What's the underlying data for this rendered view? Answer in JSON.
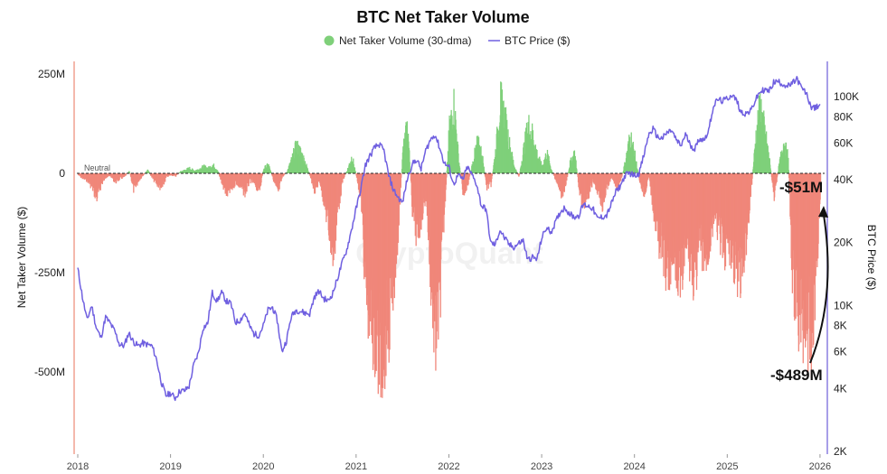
{
  "chart_data": {
    "type": "bar+line",
    "title": "BTC Net Taker Volume",
    "legend": [
      {
        "name": "Net Taker Volume (30-dma)",
        "color": "#7fd07a",
        "marker": "circle"
      },
      {
        "name": "BTC Price ($)",
        "color": "#6f5fe0",
        "marker": "line"
      }
    ],
    "legend_position": "top-center",
    "y_left": {
      "label": "Net Taker Volume ($)",
      "ticks": [
        "250M",
        "0",
        "-250M",
        "-500M"
      ],
      "tick_values": [
        250,
        0,
        -250,
        -500
      ],
      "range": [
        -700,
        270
      ],
      "unit": "M"
    },
    "y_right": {
      "label": "BTC Price ($)",
      "scale": "log",
      "ticks": [
        "100K",
        "80K",
        "60K",
        "40K",
        "20K",
        "10K",
        "8K",
        "6K",
        "4K",
        "2K"
      ],
      "tick_values": [
        100000,
        80000,
        60000,
        40000,
        20000,
        10000,
        8000,
        6000,
        4000,
        2000
      ],
      "range": [
        2000,
        160000
      ]
    },
    "x": {
      "ticks": [
        "2018",
        "2019",
        "2020",
        "2021",
        "2022",
        "2023",
        "2024",
        "2025",
        "2026"
      ],
      "range": [
        2018.0,
        2026.03
      ]
    },
    "neutral_label": "Neutral",
    "watermark": "CryptoQuant",
    "annotations": [
      {
        "text": "-$51M",
        "date": 2026.0,
        "value": -51
      },
      {
        "text": "-$489M",
        "date": 2025.9,
        "value": -489
      }
    ],
    "colors": {
      "positive": "#7fd07a",
      "negative": "#f0877a",
      "price": "#6f5fe0",
      "left_axis": "#f0a090",
      "right_axis": "#8a7fe0"
    },
    "net_taker_volume": [
      [
        2018.0,
        -5
      ],
      [
        2018.05,
        -15
      ],
      [
        2018.1,
        -20
      ],
      [
        2018.15,
        -40
      ],
      [
        2018.2,
        -70
      ],
      [
        2018.25,
        -30
      ],
      [
        2018.3,
        -10
      ],
      [
        2018.35,
        -8
      ],
      [
        2018.4,
        -25
      ],
      [
        2018.45,
        -15
      ],
      [
        2018.5,
        -10
      ],
      [
        2018.55,
        8
      ],
      [
        2018.6,
        -50
      ],
      [
        2018.65,
        -20
      ],
      [
        2018.7,
        -5
      ],
      [
        2018.75,
        10
      ],
      [
        2018.8,
        -15
      ],
      [
        2018.85,
        -30
      ],
      [
        2018.9,
        -45
      ],
      [
        2018.95,
        -10
      ],
      [
        2019.0,
        -5
      ],
      [
        2019.05,
        -8
      ],
      [
        2019.1,
        5
      ],
      [
        2019.15,
        10
      ],
      [
        2019.2,
        15
      ],
      [
        2019.25,
        8
      ],
      [
        2019.3,
        12
      ],
      [
        2019.35,
        20
      ],
      [
        2019.4,
        15
      ],
      [
        2019.45,
        25
      ],
      [
        2019.5,
        10
      ],
      [
        2019.55,
        -30
      ],
      [
        2019.6,
        -60
      ],
      [
        2019.65,
        -45
      ],
      [
        2019.7,
        -25
      ],
      [
        2019.75,
        -40
      ],
      [
        2019.8,
        -55
      ],
      [
        2019.85,
        -20
      ],
      [
        2019.9,
        -30
      ],
      [
        2019.95,
        -50
      ],
      [
        2020.0,
        15
      ],
      [
        2020.05,
        25
      ],
      [
        2020.1,
        -15
      ],
      [
        2020.15,
        -60
      ],
      [
        2020.2,
        -10
      ],
      [
        2020.25,
        5
      ],
      [
        2020.3,
        40
      ],
      [
        2020.35,
        80
      ],
      [
        2020.4,
        60
      ],
      [
        2020.45,
        30
      ],
      [
        2020.5,
        -10
      ],
      [
        2020.55,
        -50
      ],
      [
        2020.6,
        -20
      ],
      [
        2020.65,
        -80
      ],
      [
        2020.7,
        -160
      ],
      [
        2020.75,
        -230
      ],
      [
        2020.8,
        -100
      ],
      [
        2020.85,
        -20
      ],
      [
        2020.9,
        10
      ],
      [
        2020.95,
        50
      ],
      [
        2021.0,
        -10
      ],
      [
        2021.05,
        -80
      ],
      [
        2021.1,
        -340
      ],
      [
        2021.15,
        -410
      ],
      [
        2021.2,
        -470
      ],
      [
        2021.25,
        -540
      ],
      [
        2021.3,
        -480
      ],
      [
        2021.35,
        -420
      ],
      [
        2021.4,
        -300
      ],
      [
        2021.45,
        -150
      ],
      [
        2021.5,
        70
      ],
      [
        2021.55,
        140
      ],
      [
        2021.6,
        -100
      ],
      [
        2021.65,
        -180
      ],
      [
        2021.7,
        -120
      ],
      [
        2021.75,
        -60
      ],
      [
        2021.8,
        -300
      ],
      [
        2021.85,
        -480
      ],
      [
        2021.9,
        -340
      ],
      [
        2021.95,
        -90
      ],
      [
        2022.0,
        130
      ],
      [
        2022.05,
        200
      ],
      [
        2022.1,
        40
      ],
      [
        2022.15,
        -60
      ],
      [
        2022.2,
        -30
      ],
      [
        2022.25,
        30
      ],
      [
        2022.3,
        90
      ],
      [
        2022.35,
        60
      ],
      [
        2022.4,
        -40
      ],
      [
        2022.45,
        -30
      ],
      [
        2022.5,
        70
      ],
      [
        2022.55,
        210
      ],
      [
        2022.6,
        160
      ],
      [
        2022.65,
        80
      ],
      [
        2022.7,
        20
      ],
      [
        2022.75,
        -10
      ],
      [
        2022.8,
        70
      ],
      [
        2022.85,
        140
      ],
      [
        2022.9,
        110
      ],
      [
        2022.95,
        50
      ],
      [
        2023.0,
        20
      ],
      [
        2023.05,
        60
      ],
      [
        2023.1,
        10
      ],
      [
        2023.15,
        -20
      ],
      [
        2023.2,
        -60
      ],
      [
        2023.25,
        -40
      ],
      [
        2023.3,
        30
      ],
      [
        2023.35,
        60
      ],
      [
        2023.4,
        -50
      ],
      [
        2023.45,
        -100
      ],
      [
        2023.5,
        -60
      ],
      [
        2023.55,
        -20
      ],
      [
        2023.6,
        -50
      ],
      [
        2023.65,
        -90
      ],
      [
        2023.7,
        -40
      ],
      [
        2023.75,
        -10
      ],
      [
        2023.8,
        -40
      ],
      [
        2023.85,
        -20
      ],
      [
        2023.9,
        40
      ],
      [
        2023.95,
        110
      ],
      [
        2024.0,
        50
      ],
      [
        2024.05,
        -20
      ],
      [
        2024.1,
        -60
      ],
      [
        2024.15,
        -10
      ],
      [
        2024.2,
        -100
      ],
      [
        2024.25,
        -180
      ],
      [
        2024.3,
        -220
      ],
      [
        2024.35,
        -300
      ],
      [
        2024.4,
        -230
      ],
      [
        2024.45,
        -260
      ],
      [
        2024.5,
        -310
      ],
      [
        2024.55,
        -200
      ],
      [
        2024.6,
        -250
      ],
      [
        2024.65,
        -310
      ],
      [
        2024.7,
        -190
      ],
      [
        2024.75,
        -250
      ],
      [
        2024.8,
        -210
      ],
      [
        2024.85,
        -120
      ],
      [
        2024.9,
        -160
      ],
      [
        2024.95,
        -220
      ],
      [
        2025.0,
        -200
      ],
      [
        2025.05,
        -230
      ],
      [
        2025.1,
        -270
      ],
      [
        2025.15,
        -300
      ],
      [
        2025.2,
        -180
      ],
      [
        2025.25,
        -60
      ],
      [
        2025.3,
        100
      ],
      [
        2025.35,
        200
      ],
      [
        2025.4,
        120
      ],
      [
        2025.45,
        40
      ],
      [
        2025.5,
        -70
      ],
      [
        2025.55,
        20
      ],
      [
        2025.6,
        90
      ],
      [
        2025.65,
        50
      ],
      [
        2025.7,
        -300
      ],
      [
        2025.75,
        -390
      ],
      [
        2025.8,
        -420
      ],
      [
        2025.85,
        -430
      ],
      [
        2025.9,
        -489
      ],
      [
        2025.95,
        -300
      ],
      [
        2026.0,
        -51
      ]
    ],
    "btc_price": [
      [
        2018.0,
        15000
      ],
      [
        2018.05,
        11000
      ],
      [
        2018.1,
        8500
      ],
      [
        2018.15,
        10000
      ],
      [
        2018.2,
        7800
      ],
      [
        2018.25,
        7000
      ],
      [
        2018.3,
        8800
      ],
      [
        2018.35,
        8200
      ],
      [
        2018.4,
        7500
      ],
      [
        2018.45,
        6500
      ],
      [
        2018.5,
        6400
      ],
      [
        2018.55,
        7400
      ],
      [
        2018.6,
        6700
      ],
      [
        2018.65,
        6400
      ],
      [
        2018.7,
        6600
      ],
      [
        2018.75,
        6500
      ],
      [
        2018.8,
        6400
      ],
      [
        2018.85,
        5500
      ],
      [
        2018.9,
        4300
      ],
      [
        2018.95,
        3700
      ],
      [
        2019.0,
        3800
      ],
      [
        2019.05,
        3600
      ],
      [
        2019.1,
        3900
      ],
      [
        2019.15,
        3900
      ],
      [
        2019.2,
        4100
      ],
      [
        2019.25,
        5200
      ],
      [
        2019.3,
        5900
      ],
      [
        2019.35,
        7800
      ],
      [
        2019.4,
        8200
      ],
      [
        2019.45,
        11500
      ],
      [
        2019.5,
        10500
      ],
      [
        2019.55,
        11500
      ],
      [
        2019.6,
        10500
      ],
      [
        2019.65,
        10200
      ],
      [
        2019.7,
        8300
      ],
      [
        2019.75,
        8500
      ],
      [
        2019.8,
        9200
      ],
      [
        2019.85,
        8000
      ],
      [
        2019.9,
        7300
      ],
      [
        2019.95,
        7200
      ],
      [
        2020.0,
        8000
      ],
      [
        2020.05,
        9500
      ],
      [
        2020.1,
        9800
      ],
      [
        2020.15,
        8500
      ],
      [
        2020.2,
        6000
      ],
      [
        2020.25,
        6800
      ],
      [
        2020.3,
        8800
      ],
      [
        2020.35,
        9500
      ],
      [
        2020.4,
        9400
      ],
      [
        2020.45,
        9200
      ],
      [
        2020.5,
        9100
      ],
      [
        2020.55,
        11000
      ],
      [
        2020.6,
        11700
      ],
      [
        2020.65,
        10800
      ],
      [
        2020.7,
        10500
      ],
      [
        2020.75,
        11500
      ],
      [
        2020.8,
        13500
      ],
      [
        2020.85,
        16000
      ],
      [
        2020.9,
        18500
      ],
      [
        2020.95,
        23000
      ],
      [
        2021.0,
        29000
      ],
      [
        2021.05,
        36000
      ],
      [
        2021.1,
        47000
      ],
      [
        2021.15,
        52000
      ],
      [
        2021.2,
        57000
      ],
      [
        2021.25,
        59000
      ],
      [
        2021.3,
        55000
      ],
      [
        2021.35,
        42000
      ],
      [
        2021.4,
        36000
      ],
      [
        2021.45,
        33000
      ],
      [
        2021.5,
        31000
      ],
      [
        2021.55,
        40000
      ],
      [
        2021.6,
        47000
      ],
      [
        2021.65,
        50000
      ],
      [
        2021.7,
        45000
      ],
      [
        2021.75,
        55000
      ],
      [
        2021.8,
        62000
      ],
      [
        2021.85,
        66000
      ],
      [
        2021.9,
        57000
      ],
      [
        2021.95,
        48000
      ],
      [
        2022.0,
        46000
      ],
      [
        2022.05,
        38000
      ],
      [
        2022.1,
        42000
      ],
      [
        2022.15,
        40000
      ],
      [
        2022.2,
        46000
      ],
      [
        2022.25,
        42000
      ],
      [
        2022.3,
        38000
      ],
      [
        2022.35,
        30000
      ],
      [
        2022.4,
        29000
      ],
      [
        2022.45,
        20000
      ],
      [
        2022.5,
        19500
      ],
      [
        2022.55,
        23000
      ],
      [
        2022.6,
        21000
      ],
      [
        2022.65,
        19500
      ],
      [
        2022.7,
        19000
      ],
      [
        2022.75,
        19800
      ],
      [
        2022.8,
        20500
      ],
      [
        2022.85,
        16500
      ],
      [
        2022.9,
        17000
      ],
      [
        2022.95,
        16600
      ],
      [
        2023.0,
        21000
      ],
      [
        2023.05,
        23500
      ],
      [
        2023.1,
        22500
      ],
      [
        2023.15,
        25000
      ],
      [
        2023.2,
        28000
      ],
      [
        2023.25,
        29500
      ],
      [
        2023.3,
        27500
      ],
      [
        2023.35,
        26500
      ],
      [
        2023.4,
        27000
      ],
      [
        2023.45,
        30500
      ],
      [
        2023.5,
        30000
      ],
      [
        2023.55,
        29200
      ],
      [
        2023.6,
        26000
      ],
      [
        2023.65,
        26500
      ],
      [
        2023.7,
        27000
      ],
      [
        2023.75,
        30500
      ],
      [
        2023.8,
        35000
      ],
      [
        2023.85,
        37500
      ],
      [
        2023.9,
        42000
      ],
      [
        2023.95,
        43000
      ],
      [
        2024.0,
        42000
      ],
      [
        2024.05,
        43000
      ],
      [
        2024.1,
        52000
      ],
      [
        2024.15,
        65000
      ],
      [
        2024.2,
        70000
      ],
      [
        2024.25,
        64000
      ],
      [
        2024.3,
        63000
      ],
      [
        2024.35,
        67000
      ],
      [
        2024.4,
        69000
      ],
      [
        2024.45,
        62000
      ],
      [
        2024.5,
        58000
      ],
      [
        2024.55,
        66000
      ],
      [
        2024.6,
        59000
      ],
      [
        2024.65,
        56000
      ],
      [
        2024.7,
        63000
      ],
      [
        2024.75,
        62000
      ],
      [
        2024.8,
        69000
      ],
      [
        2024.85,
        90000
      ],
      [
        2024.9,
        97000
      ],
      [
        2024.95,
        95000
      ],
      [
        2025.0,
        98000
      ],
      [
        2025.05,
        102000
      ],
      [
        2025.1,
        96000
      ],
      [
        2025.15,
        84000
      ],
      [
        2025.2,
        83000
      ],
      [
        2025.25,
        85000
      ],
      [
        2025.3,
        95000
      ],
      [
        2025.35,
        105000
      ],
      [
        2025.4,
        108000
      ],
      [
        2025.45,
        106000
      ],
      [
        2025.5,
        117000
      ],
      [
        2025.55,
        118000
      ],
      [
        2025.6,
        115000
      ],
      [
        2025.65,
        112000
      ],
      [
        2025.7,
        115000
      ],
      [
        2025.75,
        122000
      ],
      [
        2025.8,
        110000
      ],
      [
        2025.85,
        104000
      ],
      [
        2025.9,
        90000
      ],
      [
        2025.95,
        88000
      ],
      [
        2026.0,
        92000
      ]
    ]
  }
}
